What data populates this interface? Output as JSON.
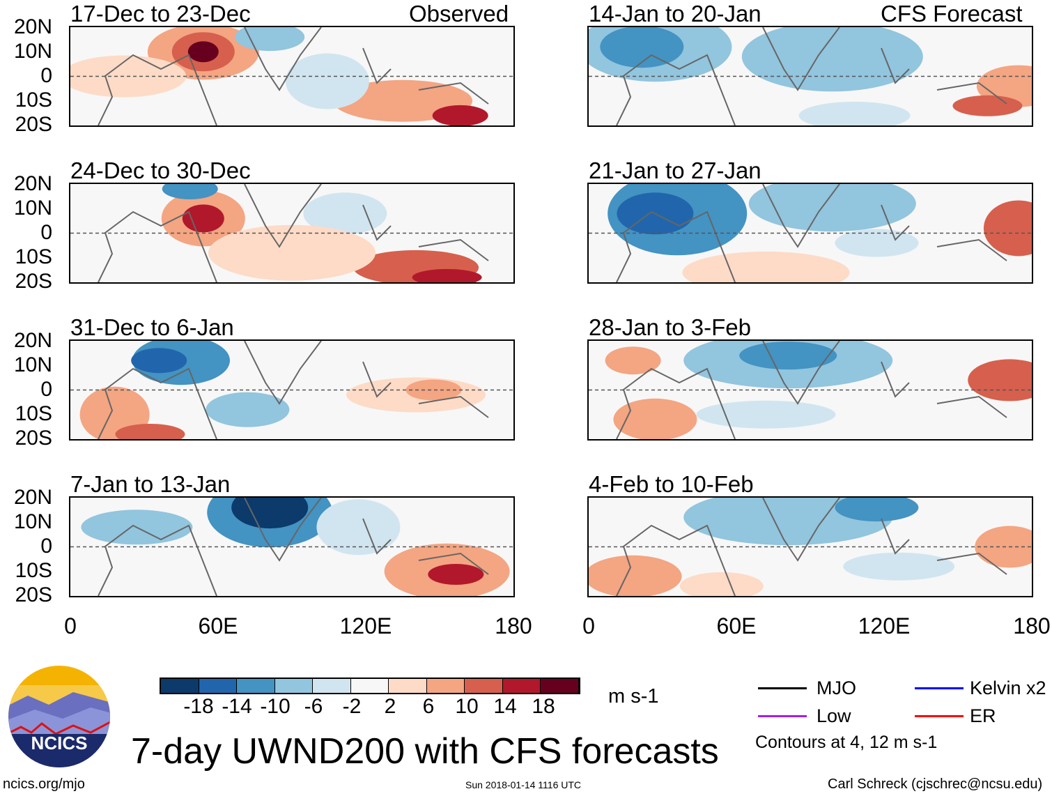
{
  "title": "7-day UWND200 with CFS forecasts",
  "timestamp": "Sun 2018-01-14 1116 UTC",
  "website": "ncics.org/mjo",
  "author": "Carl Schreck (cjschrec@ncsu.edu)",
  "logo_text": "NCICS",
  "observed_label": "Observed",
  "forecast_label": "CFS Forecast",
  "observed_panels": [
    "17-Dec to 23-Dec",
    "24-Dec to 30-Dec",
    "31-Dec to 6-Jan",
    "7-Jan to 13-Jan"
  ],
  "forecast_panels": [
    "14-Jan to 20-Jan",
    "21-Jan to 27-Jan",
    "28-Jan to 3-Feb",
    "4-Feb to 10-Feb"
  ],
  "lat_labels": [
    "20N",
    "10N",
    "0",
    "10S",
    "20S"
  ],
  "lon_labels": [
    "0",
    "60E",
    "120E",
    "180"
  ],
  "colorbar": {
    "labels": [
      "-18",
      "-14",
      "-10",
      "-6",
      "-2",
      "2",
      "6",
      "10",
      "14",
      "18"
    ],
    "colors": [
      "#0b3a6b",
      "#2166ac",
      "#4393c3",
      "#92c5de",
      "#d1e5f0",
      "#f7f7f7",
      "#fddbc7",
      "#f4a582",
      "#d6604d",
      "#b2182b",
      "#67001f"
    ],
    "units": "m s-1"
  },
  "legend": {
    "items": [
      {
        "label": "MJO",
        "color": "#000000"
      },
      {
        "label": "Kelvin x2",
        "color": "#0000ff"
      },
      {
        "label": "Low",
        "color": "#a020f0"
      },
      {
        "label": "ER",
        "color": "#ff0000"
      }
    ],
    "note": "Contours at 4, 12 m s-1"
  }
}
